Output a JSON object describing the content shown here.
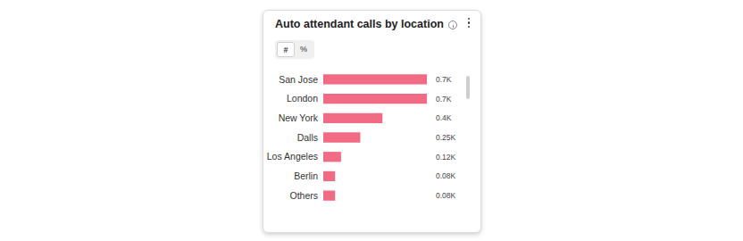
{
  "card": {
    "toggle": [
      "#",
      "%"
    ],
    "selected": "#"
  },
  "chart_data": {
    "type": "bar",
    "title": "Auto attendant calls by location",
    "orientation": "horizontal",
    "categories": [
      "San Jose",
      "London",
      "New York",
      "Dalls",
      "Los Angeles",
      "Berlin",
      "Others"
    ],
    "values": [
      0.7,
      0.7,
      0.4,
      0.25,
      0.12,
      0.08,
      0.08
    ],
    "value_labels": [
      "0.7K",
      "0.7K",
      "0.4K",
      "0.25K",
      "0.12K",
      "0.08K",
      "0.08K"
    ],
    "color": "#f06b83",
    "xlim": [
      0,
      0.7
    ],
    "data_labels": true,
    "tick_labels": "y",
    "grid": false
  }
}
